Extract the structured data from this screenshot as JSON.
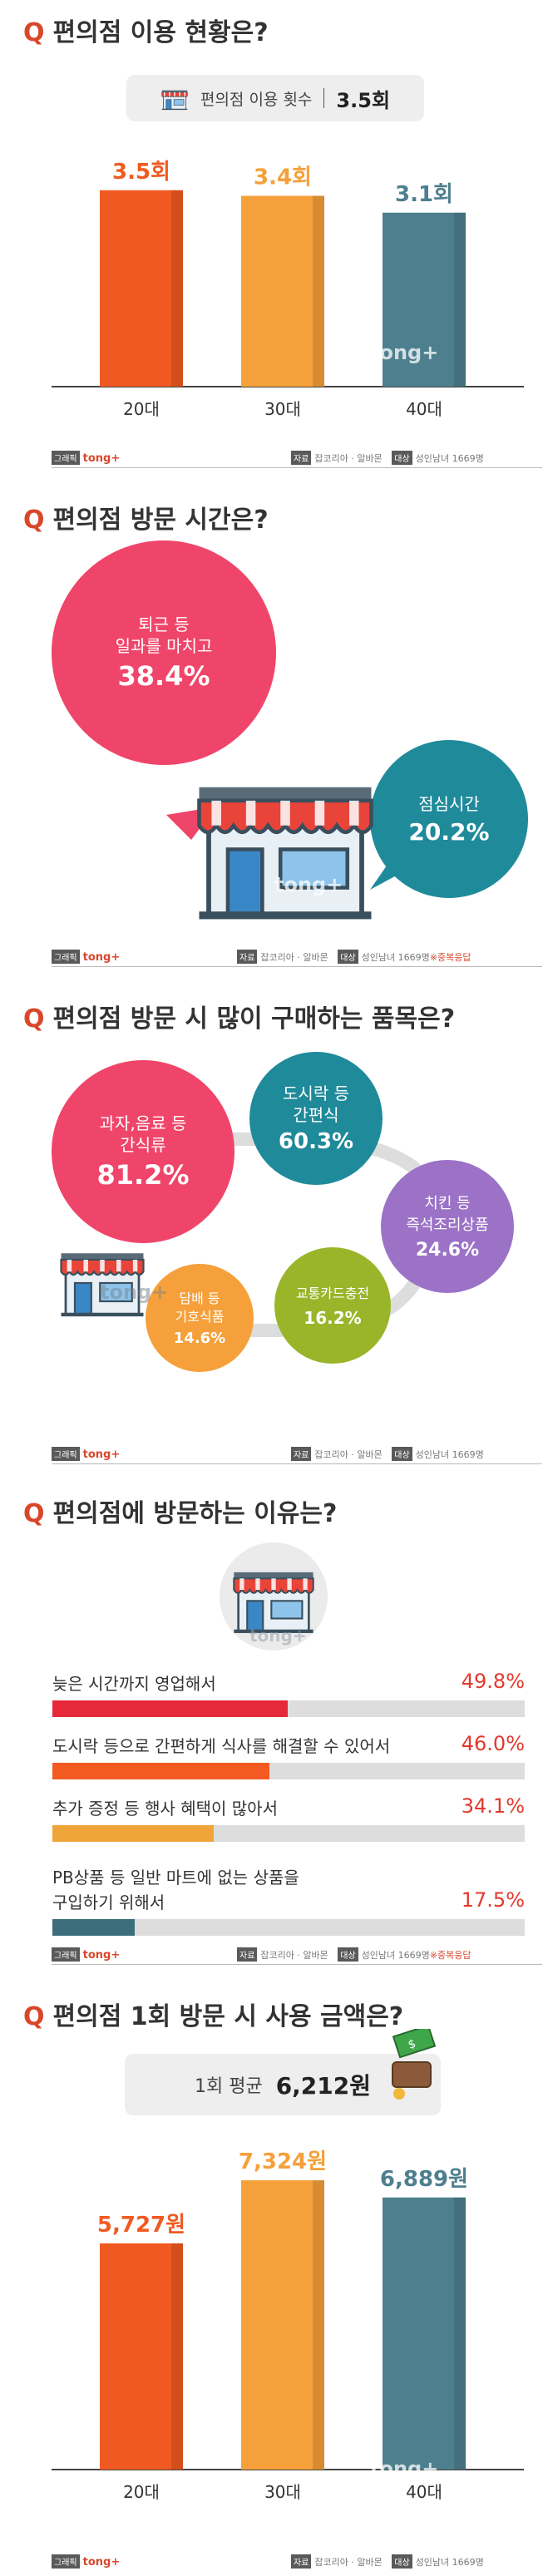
{
  "section1": {
    "q_mark": "Q",
    "title": "편의점 이용 현황은?",
    "badge_label": "편의점 이용 횟수",
    "badge_value": "3.5회",
    "footer_tag": "그래픽",
    "footer_brand": "tong+",
    "footer_source_tag": "자료",
    "footer_source": "잡코리아 · 알바몬",
    "footer_target_tag": "대상",
    "footer_target": "성인남녀 1669명",
    "watermark": "tong+"
  },
  "section2": {
    "q_mark": "Q",
    "title": "편의점 방문 시간은?",
    "bubble1_label1": "퇴근 등",
    "bubble1_label2": "일과를 마치고",
    "bubble1_value": "38.4%",
    "bubble2_label": "점심시간",
    "bubble2_value": "20.2%",
    "footer_tag": "그래픽",
    "footer_brand": "tong+",
    "footer_source_tag": "자료",
    "footer_source": "잡코리아 · 알바몬",
    "footer_target_tag": "대상",
    "footer_target": "성인남녀 1669명",
    "footer_note": "※중복응답",
    "watermark": "tong+"
  },
  "section3": {
    "q_mark": "Q",
    "title": "편의점 방문 시 많이 구매하는 품목은?",
    "items": [
      {
        "label1": "과자,음료 등",
        "label2": "간식류",
        "value": "81.2%"
      },
      {
        "label1": "도시락 등",
        "label2": "간편식",
        "value": "60.3%"
      },
      {
        "label1": "치킨 등",
        "label2": "즉석조리상품",
        "value": "24.6%"
      },
      {
        "label1": "교통카드충전",
        "label2": "",
        "value": "16.2%"
      },
      {
        "label1": "담배 등",
        "label2": "기호식품",
        "value": "14.6%"
      }
    ],
    "footer_tag": "그래픽",
    "footer_brand": "tong+",
    "footer_source_tag": "자료",
    "footer_source": "잡코리아 · 알바몬",
    "footer_target_tag": "대상",
    "footer_target": "성인남녀 1669명",
    "watermark": "tong+"
  },
  "section4": {
    "q_mark": "Q",
    "title": "편의점에 방문하는 이유는?",
    "reasons": [
      {
        "text": "늦은 시간까지 영업해서",
        "value": "49.8%"
      },
      {
        "text": "도시락 등으로 간편하게 식사를 해결할 수 있어서",
        "value": "46.0%"
      },
      {
        "text": "추가 증정 등 행사 혜택이 많아서",
        "value": "34.1%"
      },
      {
        "text1": "PB상품 등 일반 마트에 없는 상품을",
        "text2": "구입하기 위해서",
        "value": "17.5%"
      }
    ],
    "footer_tag": "그래픽",
    "footer_brand": "tong+",
    "footer_source_tag": "자료",
    "footer_source": "잡코리아 · 알바몬",
    "footer_target_tag": "대상",
    "footer_target": "성인남녀 1669명",
    "footer_note": "※중복응답",
    "watermark": "tong+"
  },
  "section5": {
    "q_mark": "Q",
    "title": "편의점 1회 방문 시 사용 금액은?",
    "badge_label": "1회 평균",
    "badge_value": "6,212원",
    "footer_tag": "그래픽",
    "footer_brand": "tong+",
    "footer_source_tag": "자료",
    "footer_source": "잡코리아 · 알바몬",
    "footer_target_tag": "대상",
    "footer_target": "성인남녀 1669명",
    "watermark": "tong+"
  },
  "colors": {
    "accent_red": "#d9472b",
    "bar_orange_red": "#f05a22",
    "bar_orange": "#f5a03a",
    "bar_teal": "#4e7f8e",
    "bubble_pink": "#f0456a",
    "bubble_teal": "#1f8a9a",
    "bubble_purple": "#9b72c6",
    "bubble_green": "#9ab52a",
    "bubble_orange": "#f5a03a",
    "bar_red": "#e5283a",
    "bar_orange_fill": "#f25a22",
    "bar_amber": "#f0a53a",
    "bar_teal_fill": "#3c6e7c"
  },
  "chart_data": [
    {
      "type": "bar",
      "categories": [
        "20대",
        "30대",
        "40대"
      ],
      "values": [
        3.5,
        3.4,
        3.1
      ],
      "value_labels": [
        "3.5회",
        "3.4회",
        "3.1회"
      ],
      "title": "편의점 이용 현황은?",
      "ylim": [
        0,
        4
      ]
    },
    {
      "type": "bar",
      "categories": [
        "늦은 시간까지 영업해서",
        "도시락 등으로 간편하게 식사를 해결할 수 있어서",
        "추가 증정 등 행사 혜택이 많아서",
        "PB상품 등 일반 마트에 없는 상품을 구입하기 위해서"
      ],
      "values": [
        49.8,
        46.0,
        34.1,
        17.5
      ],
      "title": "편의점에 방문하는 이유는?",
      "ylim": [
        0,
        100
      ]
    },
    {
      "type": "bar",
      "categories": [
        "20대",
        "30대",
        "40대"
      ],
      "values": [
        5727,
        7324,
        6889
      ],
      "value_labels": [
        "5,727원",
        "7,324원",
        "6,889원"
      ],
      "title": "편의점 1회 방문 시 사용 금액은?",
      "ylim": [
        0,
        8000
      ]
    }
  ]
}
